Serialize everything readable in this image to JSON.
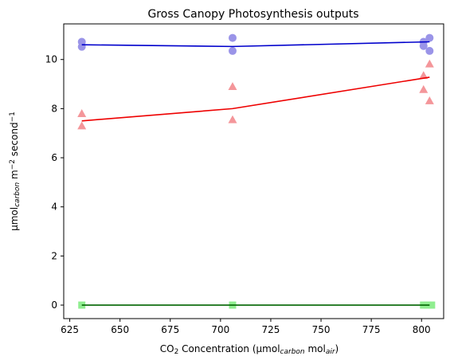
{
  "chart_data": {
    "type": "scatter",
    "title": "Gross Canopy Photosynthesis outputs",
    "xlabel": {
      "parts": [
        {
          "text": "CO",
          "style": "normal"
        },
        {
          "text": "2",
          "style": "sub"
        },
        {
          "text": " Concentration (μmol",
          "style": "normal"
        },
        {
          "text": "carbon",
          "style": "sub-italic"
        },
        {
          "text": " mol",
          "style": "normal"
        },
        {
          "text": "air",
          "style": "sub-italic"
        },
        {
          "text": ")",
          "style": "normal"
        }
      ]
    },
    "ylabel": {
      "parts": [
        {
          "text": "μmol",
          "style": "normal"
        },
        {
          "text": "carbon",
          "style": "sub-italic"
        },
        {
          "text": " m",
          "style": "normal"
        },
        {
          "text": "−2",
          "style": "sup"
        },
        {
          "text": " second",
          "style": "normal"
        },
        {
          "text": "−1",
          "style": "sup"
        }
      ]
    },
    "xlim": [
      622,
      811
    ],
    "ylim": [
      -0.55,
      11.45
    ],
    "xticks": [
      625,
      650,
      675,
      700,
      725,
      750,
      775,
      800
    ],
    "yticks": [
      0,
      2,
      4,
      6,
      8,
      10
    ],
    "grid": false,
    "series": [
      {
        "marker": "circle",
        "color": "#9a94e8",
        "line_color": "#0000cc",
        "points": [
          [
            631,
            10.72
          ],
          [
            631,
            10.52
          ],
          [
            706,
            10.88
          ],
          [
            706,
            10.35
          ],
          [
            801,
            10.72
          ],
          [
            801,
            10.55
          ],
          [
            804,
            10.88
          ],
          [
            804,
            10.35
          ]
        ],
        "fit": [
          [
            631,
            10.6
          ],
          [
            706,
            10.53
          ],
          [
            804,
            10.72
          ]
        ]
      },
      {
        "marker": "triangle",
        "color": "#f4969a",
        "line_color": "#ee0000",
        "points": [
          [
            631,
            7.8
          ],
          [
            631,
            7.3
          ],
          [
            706,
            8.9
          ],
          [
            706,
            7.55
          ],
          [
            801,
            9.35
          ],
          [
            801,
            8.78
          ],
          [
            804,
            9.82
          ],
          [
            804,
            8.32
          ]
        ],
        "fit": [
          [
            631,
            7.5
          ],
          [
            706,
            8.0
          ],
          [
            804,
            9.28
          ]
        ]
      },
      {
        "marker": "square",
        "color": "#90ee90",
        "line_color": "#006400",
        "points": [
          [
            631,
            0.0
          ],
          [
            706,
            0.0
          ],
          [
            801,
            0.0
          ],
          [
            803,
            0.0
          ],
          [
            805,
            0.0
          ]
        ],
        "fit": [
          [
            631,
            0.0
          ],
          [
            706,
            0.0
          ],
          [
            804,
            0.0
          ]
        ]
      }
    ]
  }
}
